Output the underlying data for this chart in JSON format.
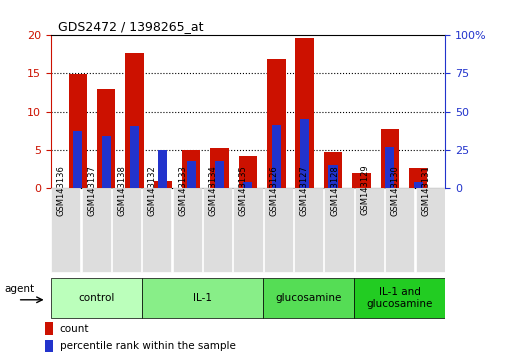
{
  "title": "GDS2472 / 1398265_at",
  "samples": [
    "GSM143136",
    "GSM143137",
    "GSM143138",
    "GSM143132",
    "GSM143133",
    "GSM143134",
    "GSM143135",
    "GSM143126",
    "GSM143127",
    "GSM143128",
    "GSM143129",
    "GSM143130",
    "GSM143131"
  ],
  "count_values": [
    14.9,
    13.0,
    17.7,
    0.9,
    5.0,
    5.2,
    4.1,
    16.9,
    19.6,
    4.7,
    1.9,
    7.7,
    2.6
  ],
  "percentile_values": [
    37.5,
    34.0,
    40.5,
    25.0,
    17.5,
    17.5,
    4.0,
    41.0,
    45.0,
    15.0,
    0.0,
    26.5,
    3.5
  ],
  "groups": [
    {
      "label": "control",
      "indices": [
        0,
        1,
        2
      ],
      "color": "#bbffbb"
    },
    {
      "label": "IL-1",
      "indices": [
        3,
        4,
        5,
        6
      ],
      "color": "#88ee88"
    },
    {
      "label": "glucosamine",
      "indices": [
        7,
        8,
        9
      ],
      "color": "#55dd55"
    },
    {
      "label": "IL-1 and\nglucosamine",
      "indices": [
        10,
        11,
        12
      ],
      "color": "#22cc22"
    }
  ],
  "ylim_left": [
    0,
    20
  ],
  "ylim_right": [
    0,
    100
  ],
  "yticks_left": [
    0,
    5,
    10,
    15,
    20
  ],
  "yticks_right": [
    0,
    25,
    50,
    75,
    100
  ],
  "bar_color": "#cc1100",
  "percentile_color": "#2233cc",
  "bar_width": 0.65,
  "percentile_bar_width": 0.32,
  "bg_color": "#ffffff",
  "tick_label_color_left": "#cc1100",
  "tick_label_color_right": "#2233cc",
  "sample_box_color": "#dddddd",
  "sep_color": "#444444",
  "agent_label": "agent",
  "legend_count": "count",
  "legend_percentile": "percentile rank within the sample"
}
